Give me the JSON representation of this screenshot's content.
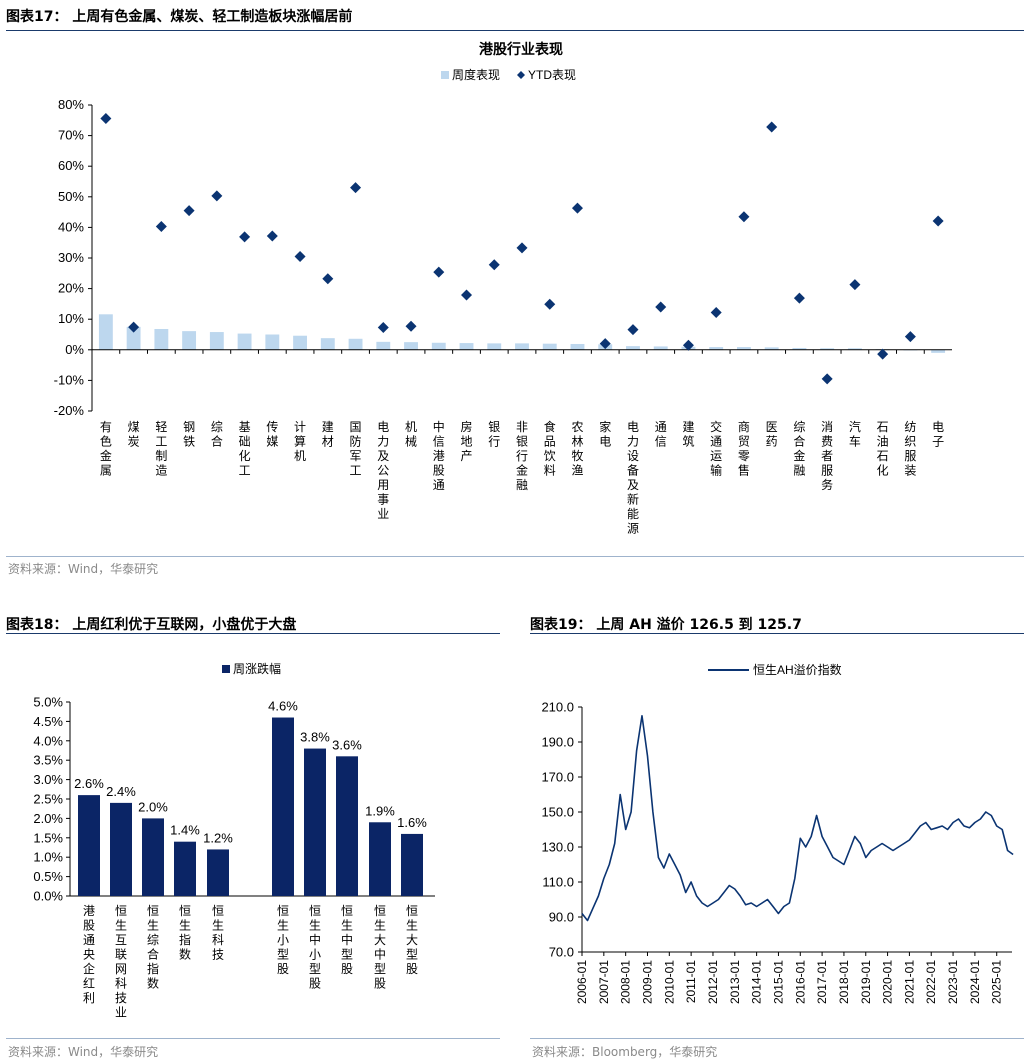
{
  "fig17": {
    "title": "图表17：  上周有色金属、煤炭、轻工制造板块涨幅居前",
    "source": "资料来源：Wind，华泰研究",
    "chart_data": {
      "type": "bar",
      "title": "港股行业表现",
      "legend": [
        "周度表现",
        "YTD表现"
      ],
      "ylim": [
        -20,
        80
      ],
      "yticks": [
        "80%",
        "70%",
        "60%",
        "50%",
        "40%",
        "30%",
        "20%",
        "10%",
        "0%",
        "-10%",
        "-20%"
      ],
      "categories": [
        "有色金属",
        "煤炭",
        "轻工制造",
        "钢铁",
        "综合",
        "基础化工",
        "传媒",
        "计算机",
        "建材",
        "国防军工",
        "电力及公用事业",
        "机械",
        "中信港股通",
        "房地产",
        "银行",
        "非银行金融",
        "食品饮料",
        "农林牧渔",
        "家电",
        "电力设备及新能源",
        "通信",
        "建筑",
        "交通运输",
        "商贸零售",
        "医药",
        "综合金融",
        "消费者服务",
        "汽车",
        "石油石化",
        "纺织服装",
        "电子"
      ],
      "series": [
        {
          "name": "周度表现",
          "values": [
            11.6,
            7.5,
            6.8,
            6.1,
            5.8,
            5.3,
            5.0,
            4.6,
            3.8,
            3.6,
            2.6,
            2.5,
            2.3,
            2.2,
            2.1,
            2.1,
            2.0,
            1.9,
            1.8,
            1.2,
            1.1,
            1.0,
            0.9,
            0.9,
            0.8,
            0.6,
            0.5,
            0.5,
            0.2,
            -0.2,
            -1.0
          ]
        },
        {
          "name": "YTD表现",
          "values": [
            75.6,
            7.4,
            40.3,
            45.5,
            50.3,
            36.9,
            37.2,
            30.5,
            23.2,
            53.0,
            7.3,
            7.7,
            25.4,
            17.9,
            27.8,
            33.3,
            14.9,
            46.3,
            2.0,
            6.6,
            14.0,
            1.5,
            12.2,
            43.5,
            72.8,
            16.9,
            -9.5,
            21.3,
            -1.4,
            4.3,
            42.1
          ]
        }
      ]
    }
  },
  "fig18": {
    "title": "图表18：  上周红利优于互联网，小盘优于大盘",
    "source": "资料来源：Wind，华泰研究",
    "chart_data": {
      "type": "bar",
      "legend": "周涨跌幅",
      "ylim": [
        0,
        5
      ],
      "yticks": [
        "5.0%",
        "4.5%",
        "4.0%",
        "3.5%",
        "3.0%",
        "2.5%",
        "2.0%",
        "1.5%",
        "1.0%",
        "0.5%",
        "0.0%"
      ],
      "categories": [
        "港股通央企红利",
        "恒生互联网科技业",
        "恒生综合指数",
        "恒生指数",
        "恒生科技",
        "恒生小型股",
        "恒生中小型股",
        "恒生中型股",
        "恒生大中型股",
        "恒生大型股"
      ],
      "values": [
        2.6,
        2.4,
        2.0,
        1.4,
        1.2,
        4.6,
        3.8,
        3.6,
        1.9,
        1.6
      ],
      "labels": [
        "2.6%",
        "2.4%",
        "2.0%",
        "1.4%",
        "1.2%",
        "4.6%",
        "3.8%",
        "3.6%",
        "1.9%",
        "1.6%"
      ]
    }
  },
  "fig19": {
    "title": "图表19：  上周 AH 溢价 126.5 到 125.7",
    "source": "资料来源：Bloomberg，华泰研究",
    "chart_data": {
      "type": "line",
      "legend": "恒生AH溢价指数",
      "ylim": [
        70,
        210
      ],
      "yticks": [
        "210.0",
        "190.0",
        "170.0",
        "150.0",
        "130.0",
        "110.0",
        "90.0",
        "70.0"
      ],
      "xticks": [
        "2006-01",
        "2007-01",
        "2008-01",
        "2009-01",
        "2010-01",
        "2011-01",
        "2012-01",
        "2013-01",
        "2014-01",
        "2015-01",
        "2016-01",
        "2017-01",
        "2018-01",
        "2019-01",
        "2020-01",
        "2021-01",
        "2022-01",
        "2023-01",
        "2024-01",
        "2025-01"
      ],
      "x_start": 2006.0,
      "x_step_years": 0.25,
      "y": [
        92,
        88,
        95,
        102,
        112,
        120,
        132,
        160,
        140,
        150,
        185,
        205,
        182,
        150,
        124,
        118,
        126,
        120,
        114,
        104,
        110,
        102,
        98,
        96,
        98,
        100,
        104,
        108,
        106,
        102,
        97,
        98,
        96,
        98,
        100,
        96,
        92,
        96,
        98,
        112,
        135,
        130,
        136,
        148,
        136,
        130,
        124,
        122,
        120,
        128,
        136,
        132,
        124,
        128,
        130,
        132,
        130,
        128,
        130,
        132,
        134,
        138,
        142,
        144,
        140,
        141,
        142,
        140,
        144,
        146,
        142,
        141,
        144,
        146,
        150,
        148,
        142,
        140,
        128,
        125.7
      ]
    }
  }
}
